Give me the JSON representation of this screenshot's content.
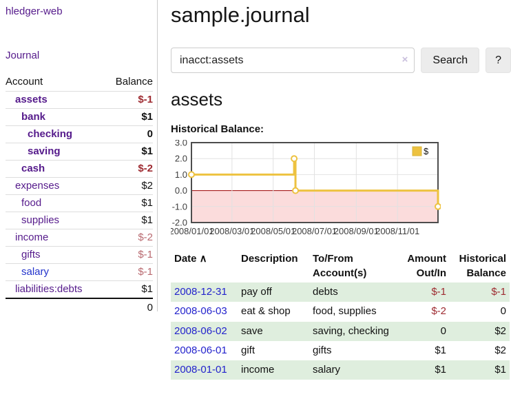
{
  "colors": {
    "accent_purple": "#551a8b",
    "link_blue": "#2222cc",
    "negative_strong": "#9e2b31",
    "negative_soft": "#b96a70",
    "stripe_green": "#dfeede",
    "chart_line": "#edc240",
    "chart_negative_fill": "#fbdcdc",
    "chart_zero_line": "#9b0000"
  },
  "app": {
    "brand": "hledger-web",
    "nav_journal": "Journal"
  },
  "sidebar": {
    "headers": [
      "Account",
      "Balance"
    ],
    "accounts": [
      {
        "name": "assets",
        "level": 1,
        "bold": true,
        "balance": "$-1"
      },
      {
        "name": "bank",
        "level": 2,
        "bold": true,
        "balance": "$1"
      },
      {
        "name": "checking",
        "level": 3,
        "bold": true,
        "balance": "0"
      },
      {
        "name": "saving",
        "level": 3,
        "bold": true,
        "balance": "$1"
      },
      {
        "name": "cash",
        "level": 2,
        "bold": true,
        "balance": "$-2"
      },
      {
        "name": "expenses",
        "level": 1,
        "bold": false,
        "balance": "$2"
      },
      {
        "name": "food",
        "level": 2,
        "bold": false,
        "balance": "$1"
      },
      {
        "name": "supplies",
        "level": 2,
        "bold": false,
        "balance": "$1"
      },
      {
        "name": "income",
        "level": 1,
        "bold": false,
        "balance": "$-2"
      },
      {
        "name": "gifts",
        "level": 2,
        "bold": false,
        "balance": "$-1"
      },
      {
        "name": "salary",
        "level": 2,
        "bold": false,
        "balance": "$-1",
        "link_style": "blue"
      },
      {
        "name": "liabilities:debts",
        "level": 1,
        "bold": false,
        "balance": "$1"
      }
    ],
    "total": "0"
  },
  "main": {
    "title": "sample.journal",
    "search": {
      "value": "inacct:assets",
      "clear_icon": "×",
      "button_label": "Search",
      "help_label": "?"
    },
    "heading": "assets",
    "chart_label": "Historical Balance:"
  },
  "chart_data": {
    "type": "line",
    "title": "Historical Balance",
    "step": true,
    "series": [
      {
        "name": "$",
        "color": "#edc240",
        "points": [
          [
            "2008-01-01",
            1
          ],
          [
            "2008-06-01",
            2
          ],
          [
            "2008-06-03",
            0
          ],
          [
            "2008-12-31",
            -1
          ]
        ]
      }
    ],
    "x_range": [
      "2008-01-01",
      "2008-12-31"
    ],
    "x_ticks": [
      "2008/01/01",
      "2008/03/01",
      "2008/05/01",
      "2008/07/01",
      "2008/09/01",
      "2008/11/01"
    ],
    "y_ticks": [
      3.0,
      2.0,
      1.0,
      0.0,
      -1.0,
      -2.0
    ],
    "ylim": [
      -2,
      3
    ],
    "legend": {
      "position": "top-right",
      "label": "$"
    },
    "grid": true,
    "negative_fill": "#fbdcdc",
    "zero_line_color": "#9b0000",
    "grid_color": "#e2e2e2",
    "border_color": "#4d4d4d"
  },
  "register": {
    "sort_icon": "∧",
    "columns": [
      {
        "line1": "Date",
        "line2": "",
        "align": "l"
      },
      {
        "line1": "Description",
        "line2": "",
        "align": "l"
      },
      {
        "line1": "To/From",
        "line2": "Account(s)",
        "align": "l"
      },
      {
        "line1": "Amount",
        "line2": "Out/In",
        "align": "r"
      },
      {
        "line1": "Historical",
        "line2": "Balance",
        "align": "r"
      }
    ],
    "rows": [
      {
        "date": "2008-12-31",
        "description": "pay off",
        "accounts": "debts",
        "amount": "$-1",
        "balance": "$-1"
      },
      {
        "date": "2008-06-03",
        "description": "eat & shop",
        "accounts": "food, supplies",
        "amount": "$-2",
        "balance": "0"
      },
      {
        "date": "2008-06-02",
        "description": "save",
        "accounts": "saving, checking",
        "amount": "0",
        "balance": "$2"
      },
      {
        "date": "2008-06-01",
        "description": "gift",
        "accounts": "gifts",
        "amount": "$1",
        "balance": "$2"
      },
      {
        "date": "2008-01-01",
        "description": "income",
        "accounts": "salary",
        "amount": "$1",
        "balance": "$1"
      }
    ]
  }
}
